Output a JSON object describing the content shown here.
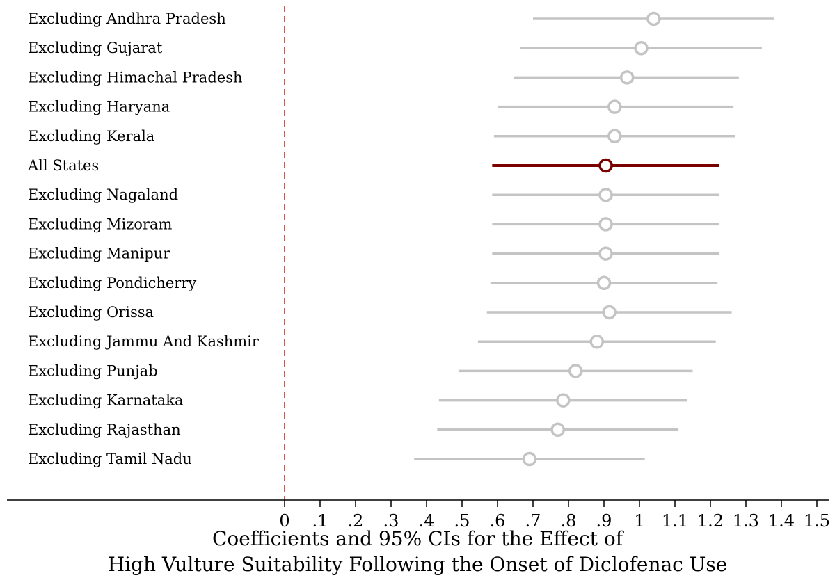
{
  "chart_data": {
    "type": "scatter",
    "subtype": "coefficient-plot-horizontal",
    "xlabel": [
      "Coefficients and 95% CIs for the Effect of",
      "High Vulture Suitability Following the Onset of Diclofenac Use"
    ],
    "xlim": [
      0,
      1.5
    ],
    "xticks": [
      0,
      0.1,
      0.2,
      0.3,
      0.4,
      0.5,
      0.6,
      0.7,
      0.8,
      0.9,
      1,
      1.1,
      1.2,
      1.3,
      1.4,
      1.5
    ],
    "xtick_labels": [
      "0",
      ".1",
      ".2",
      ".3",
      ".4",
      ".5",
      ".6",
      ".7",
      ".8",
      ".9",
      "1",
      "1.1",
      "1.2",
      "1.3",
      "1.4",
      "1.5"
    ],
    "reference_line": {
      "x": 0,
      "style": "dashed",
      "color": "#d9534f"
    },
    "colors": {
      "highlight": "#7a0000",
      "default": "#c4c4c4"
    },
    "rows": [
      {
        "label": "Excluding Andhra Pradesh",
        "estimate": 1.04,
        "ci_low": 0.7,
        "ci_high": 1.38,
        "highlight": false
      },
      {
        "label": "Excluding Gujarat",
        "estimate": 1.005,
        "ci_low": 0.665,
        "ci_high": 1.345,
        "highlight": false
      },
      {
        "label": "Excluding Himachal Pradesh",
        "estimate": 0.965,
        "ci_low": 0.645,
        "ci_high": 1.28,
        "highlight": false
      },
      {
        "label": "Excluding Haryana",
        "estimate": 0.93,
        "ci_low": 0.6,
        "ci_high": 1.265,
        "highlight": false
      },
      {
        "label": "Excluding Kerala",
        "estimate": 0.93,
        "ci_low": 0.59,
        "ci_high": 1.27,
        "highlight": false
      },
      {
        "label": "All States",
        "estimate": 0.905,
        "ci_low": 0.585,
        "ci_high": 1.225,
        "highlight": true
      },
      {
        "label": "Excluding Nagaland",
        "estimate": 0.905,
        "ci_low": 0.585,
        "ci_high": 1.225,
        "highlight": false
      },
      {
        "label": "Excluding Mizoram",
        "estimate": 0.905,
        "ci_low": 0.585,
        "ci_high": 1.225,
        "highlight": false
      },
      {
        "label": "Excluding Manipur",
        "estimate": 0.905,
        "ci_low": 0.585,
        "ci_high": 1.225,
        "highlight": false
      },
      {
        "label": "Excluding Pondicherry",
        "estimate": 0.9,
        "ci_low": 0.58,
        "ci_high": 1.22,
        "highlight": false
      },
      {
        "label": "Excluding Orissa",
        "estimate": 0.915,
        "ci_low": 0.57,
        "ci_high": 1.26,
        "highlight": false
      },
      {
        "label": "Excluding Jammu And Kashmir",
        "estimate": 0.88,
        "ci_low": 0.545,
        "ci_high": 1.215,
        "highlight": false
      },
      {
        "label": "Excluding Punjab",
        "estimate": 0.82,
        "ci_low": 0.49,
        "ci_high": 1.15,
        "highlight": false
      },
      {
        "label": "Excluding Karnataka",
        "estimate": 0.785,
        "ci_low": 0.435,
        "ci_high": 1.135,
        "highlight": false
      },
      {
        "label": "Excluding Rajasthan",
        "estimate": 0.77,
        "ci_low": 0.43,
        "ci_high": 1.11,
        "highlight": false
      },
      {
        "label": "Excluding Tamil Nadu",
        "estimate": 0.69,
        "ci_low": 0.365,
        "ci_high": 1.015,
        "highlight": false
      }
    ]
  }
}
